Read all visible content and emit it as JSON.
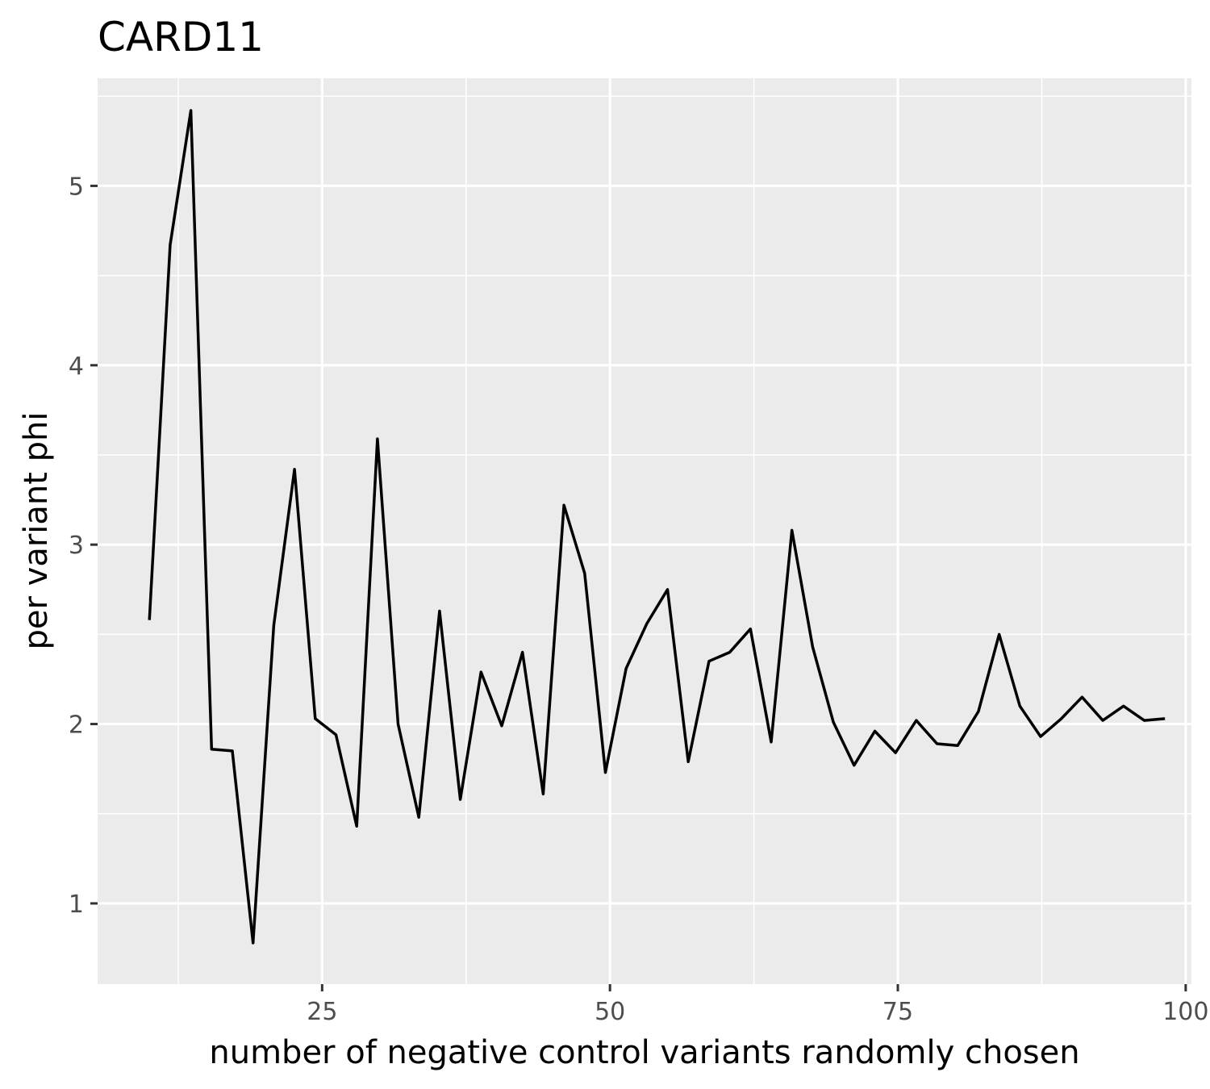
{
  "chart_data": {
    "type": "line",
    "title": "CARD11",
    "xlabel": "number of negative control variants randomly chosen",
    "ylabel": "per variant phi",
    "xlim": [
      5.5,
      100.5
    ],
    "ylim": [
      0.55,
      5.6
    ],
    "x_ticks": [
      25,
      50,
      75,
      100
    ],
    "y_ticks": [
      1,
      2,
      3,
      4,
      5
    ],
    "grid": true,
    "panel_color": "#ebebeb",
    "line_color": "#000000",
    "series": [
      {
        "x": [
          10,
          11.8,
          13.6,
          15.4,
          17.2,
          19,
          20.8,
          22.6,
          24.4,
          26.2,
          28,
          29.8,
          31.6,
          33.4,
          35.2,
          37,
          38.8,
          40.6,
          42.4,
          44.2,
          46,
          47.8,
          49.6,
          51.4,
          53.2,
          55,
          56.8,
          58.6,
          60.4,
          62.2,
          64,
          65.8,
          67.6,
          69.4,
          71.2,
          73,
          74.8,
          76.6,
          78.4,
          80.2,
          82,
          83.8,
          85.6,
          87.4,
          89.2,
          91,
          92.8,
          94.6,
          96.4,
          98.2
        ],
        "y": [
          2.58,
          4.67,
          5.42,
          1.86,
          1.85,
          0.78,
          2.55,
          3.42,
          2.03,
          1.94,
          1.43,
          3.59,
          2.0,
          1.48,
          2.63,
          1.58,
          2.29,
          1.99,
          2.4,
          1.61,
          3.22,
          2.84,
          1.73,
          2.31,
          2.56,
          2.75,
          1.79,
          2.35,
          2.4,
          2.53,
          1.9,
          3.08,
          2.43,
          2.01,
          1.77,
          1.96,
          1.84,
          2.02,
          1.89,
          1.88,
          2.07,
          2.5,
          2.1,
          1.93,
          2.03,
          2.15,
          2.02,
          2.1,
          2.02,
          2.03
        ]
      }
    ]
  }
}
